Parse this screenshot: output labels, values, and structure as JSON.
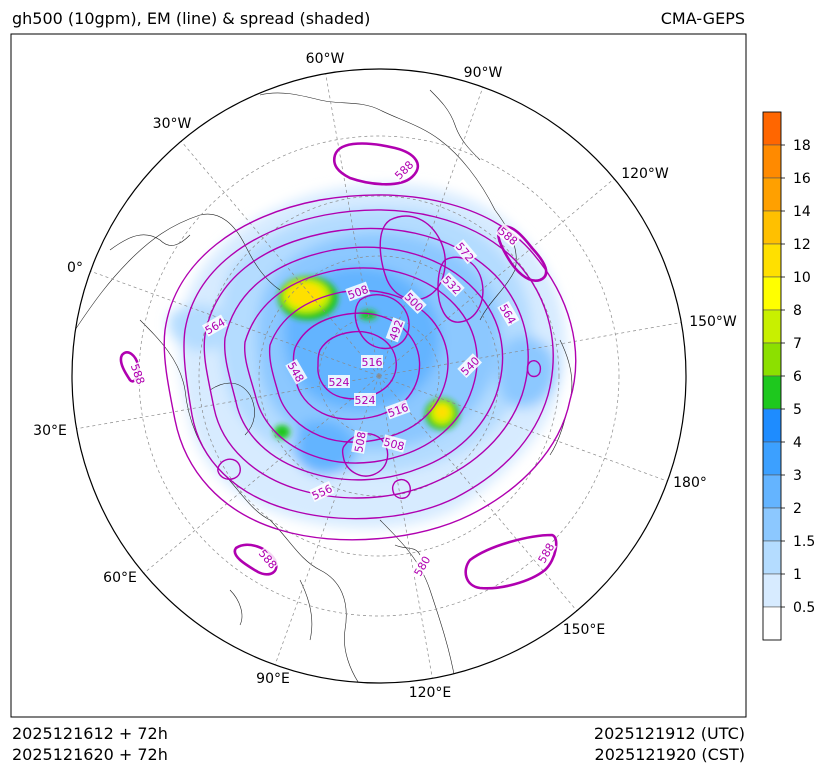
{
  "title_left": "gh500 (10gpm), EM (line) & spread (shaded)",
  "title_right": "CMA-GEPS",
  "init_utc": "2025121612 + 72h",
  "init_cst": "2025121620 + 72h",
  "valid_utc": "2025121912 (UTC)",
  "valid_cst": "2025121920 (CST)",
  "longitude_labels": [
    "60°W",
    "90°W",
    "30°W",
    "120°W",
    "0°",
    "150°W",
    "30°E",
    "180°",
    "60°E",
    "150°E",
    "90°E",
    "120°E"
  ],
  "contour_labels": [
    "588",
    "588",
    "572",
    "532",
    "564",
    "508",
    "500",
    "564",
    "516",
    "492",
    "548",
    "524",
    "540",
    "524",
    "516",
    "508",
    "508",
    "556",
    "588",
    "580",
    "588",
    "588"
  ],
  "colorbar": {
    "labels": [
      "18",
      "16",
      "14",
      "12",
      "10",
      "8",
      "7",
      "6",
      "5",
      "4",
      "3",
      "2",
      "1.5",
      "1",
      "0.5"
    ],
    "colors_top_to_bottom": [
      "#ff6600",
      "#ff8a00",
      "#ffa000",
      "#ffc000",
      "#ffe000",
      "#ffff00",
      "#c8f000",
      "#8ce000",
      "#1ec81e",
      "#1e8cff",
      "#3ca0ff",
      "#64b4ff",
      "#8cc8ff",
      "#b4dcff",
      "#d7ebff",
      "#ffffff"
    ]
  },
  "colors": {
    "contour": "#b000b0",
    "title": "#000000"
  }
}
